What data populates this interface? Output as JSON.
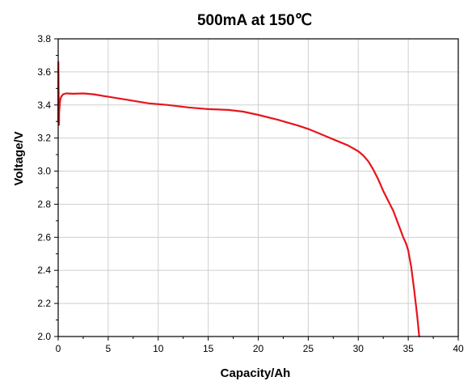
{
  "chart_data": {
    "type": "line",
    "title": "500mA at 150℃",
    "xlabel": "Capacity/Ah",
    "ylabel": "Voltage/V",
    "xlim": [
      0,
      40
    ],
    "ylim": [
      2.0,
      3.8
    ],
    "x_ticks": [
      "0",
      "5",
      "10",
      "15",
      "20",
      "25",
      "30",
      "35",
      "40"
    ],
    "y_ticks": [
      "2.0",
      "2.2",
      "2.4",
      "2.6",
      "2.8",
      "3.0",
      "3.2",
      "3.4",
      "3.6",
      "3.8"
    ],
    "grid": true,
    "line_color": "#e8141b",
    "series": [
      {
        "x": [
          0.0,
          0.02,
          0.05,
          0.08,
          0.1,
          0.15,
          0.2,
          0.3,
          0.5,
          0.8,
          1.5,
          2.5,
          3.5,
          5,
          7,
          9,
          11,
          13,
          15,
          17,
          18.5,
          20,
          22,
          24,
          25,
          26,
          27,
          28,
          29,
          30,
          30.5,
          31,
          31.5,
          32,
          32.5,
          33,
          33.5,
          34,
          34.5,
          34.8,
          35.0,
          35.3,
          35.6,
          35.9,
          36.1
        ],
        "y": [
          3.3,
          3.66,
          3.45,
          3.28,
          3.36,
          3.4,
          3.43,
          3.45,
          3.465,
          3.47,
          3.468,
          3.47,
          3.465,
          3.45,
          3.43,
          3.41,
          3.4,
          3.385,
          3.375,
          3.37,
          3.36,
          3.34,
          3.31,
          3.275,
          3.255,
          3.23,
          3.205,
          3.18,
          3.155,
          3.12,
          3.095,
          3.06,
          3.01,
          2.95,
          2.88,
          2.82,
          2.76,
          2.68,
          2.6,
          2.56,
          2.52,
          2.42,
          2.28,
          2.12,
          2.0
        ]
      }
    ]
  }
}
